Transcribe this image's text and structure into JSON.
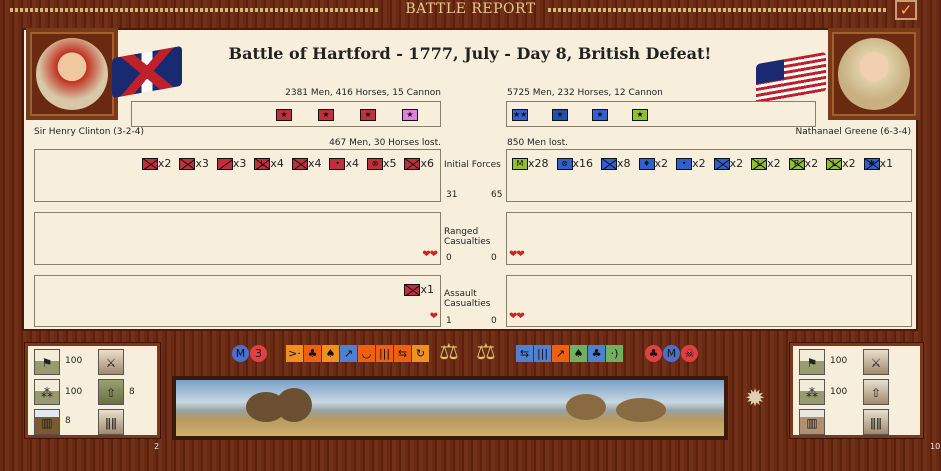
{
  "window": {
    "title": "BATTLE REPORT",
    "ok_icon": "checkmark-icon"
  },
  "heading": "Battle of Hartford - 1777, July - Day 8, British Defeat!",
  "colors": {
    "british": "#c0303a",
    "british_pink": "#e080e0",
    "american": "#3060d0",
    "american_dark": "#2050b0",
    "militia": "#90c030"
  },
  "left": {
    "general": "Sir Henry Clinton (3-2-4)",
    "strength": "2381 Men, 416 Horses, 15 Cannon",
    "lost": "467 Men, 30 Horses lost.",
    "leaders": [
      {
        "glyph": "★",
        "color": "#c0303a"
      },
      {
        "glyph": "★",
        "color": "#c0303a"
      },
      {
        "glyph": "★",
        "color": "#c0303a"
      },
      {
        "glyph": "★",
        "color": "#e080e0"
      }
    ],
    "initial_units": [
      {
        "type": "x",
        "glyph": "",
        "color": "#c0303a",
        "count": "x2"
      },
      {
        "type": "x",
        "glyph": "",
        "color": "#c0303a",
        "count": "x3"
      },
      {
        "type": "s",
        "glyph": "",
        "color": "#c0303a",
        "count": "x3"
      },
      {
        "type": "x",
        "glyph": "L",
        "color": "#c0303a",
        "count": "x4"
      },
      {
        "type": "x",
        "glyph": "",
        "color": "#c0303a",
        "count": "x4"
      },
      {
        "type": "",
        "glyph": "•",
        "color": "#c0303a",
        "count": "x4"
      },
      {
        "type": "",
        "glyph": "⊗",
        "color": "#c0303a",
        "count": "x5"
      },
      {
        "type": "x",
        "glyph": "",
        "color": "#c0303a",
        "count": "x6"
      }
    ],
    "initial_count": "31",
    "ranged_units": [],
    "ranged_count": "0",
    "ranged_hearts": "❤❤",
    "assault_units": [
      {
        "type": "x",
        "glyph": "",
        "color": "#c0303a",
        "count": "x1"
      }
    ],
    "assault_count": "1",
    "assault_hearts": "❤",
    "stats": {
      "stat1": "100",
      "stat2": "100",
      "stat3": "8",
      "stat5": "8"
    },
    "page": "2"
  },
  "right": {
    "general": "Nathanael Greene (6-3-4)",
    "strength": "5725 Men, 232 Horses, 12 Cannon",
    "lost": "850 Men lost.",
    "leaders": [
      {
        "glyph": "★★",
        "color": "#3060d0"
      },
      {
        "glyph": "★",
        "color": "#2050b0"
      },
      {
        "glyph": "★",
        "color": "#3060d0"
      },
      {
        "glyph": "★",
        "color": "#90c030"
      }
    ],
    "initial_units": [
      {
        "type": "",
        "glyph": "M",
        "color": "#90c030",
        "count": "x28"
      },
      {
        "type": "",
        "glyph": "⊗",
        "color": "#3060d0",
        "count": "x16"
      },
      {
        "type": "x",
        "glyph": "",
        "color": "#3060d0",
        "count": "x8"
      },
      {
        "type": "",
        "glyph": "♦",
        "color": "#3060d0",
        "count": "x2"
      },
      {
        "type": "",
        "glyph": "•",
        "color": "#3060d0",
        "count": "x2"
      },
      {
        "type": "x",
        "glyph": "",
        "color": "#3060d0",
        "count": "x2"
      },
      {
        "type": "x",
        "glyph": "L",
        "color": "#90c030",
        "count": "x2"
      },
      {
        "type": "x",
        "glyph": "R",
        "color": "#90c030",
        "count": "x2"
      },
      {
        "type": "x",
        "glyph": "L",
        "color": "#90c030",
        "count": "x2"
      },
      {
        "type": "x",
        "glyph": "✱",
        "color": "#3060d0",
        "count": "x1"
      }
    ],
    "initial_count": "65",
    "ranged_count": "0",
    "ranged_hearts": "❤❤",
    "assault_count": "0",
    "assault_hearts": "❤❤",
    "stats": {
      "stat1": "100",
      "stat2": "100"
    },
    "page": "10"
  },
  "center": {
    "initial": "Initial Forces",
    "ranged": "Ranged Casualties",
    "assault": "Assault Casualties"
  },
  "icons_left": [
    {
      "g": "M",
      "c": "#4a70d0",
      "r": 1
    },
    {
      "g": "3",
      "c": "#e04040",
      "r": 1
    }
  ],
  "icons_brit": [
    {
      "g": ">·",
      "c": "#f09020"
    },
    {
      "g": "♣",
      "c": "#f06010"
    },
    {
      "g": "♠",
      "c": "#f09020"
    },
    {
      "g": "↗",
      "c": "#5080d0"
    },
    {
      "g": "◡",
      "c": "#f06010"
    },
    {
      "g": "|||",
      "c": "#f06010"
    },
    {
      "g": "⇆",
      "c": "#f06010"
    },
    {
      "g": "↻",
      "c": "#f09020"
    }
  ],
  "icons_amer": [
    {
      "g": "⇆",
      "c": "#5080d0"
    },
    {
      "g": "|||",
      "c": "#5080d0"
    },
    {
      "g": "↗",
      "c": "#f06010"
    },
    {
      "g": "♠",
      "c": "#70b060"
    },
    {
      "g": "♣",
      "c": "#5080d0"
    },
    {
      "g": "·)",
      "c": "#70b060"
    }
  ],
  "icons_right": [
    {
      "g": "♣",
      "c": "#e04040",
      "r": 1
    },
    {
      "g": "M",
      "c": "#4a70d0",
      "r": 1
    },
    {
      "g": "☠",
      "c": "#e04040",
      "r": 1
    }
  ],
  "scales": "⚖"
}
